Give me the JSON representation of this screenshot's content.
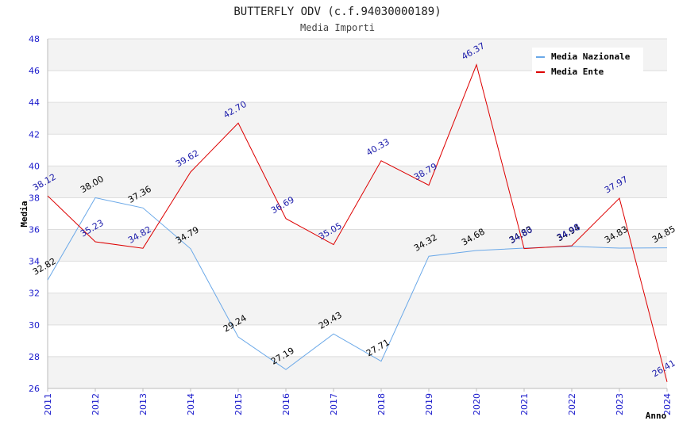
{
  "chart_data": {
    "type": "line",
    "title": "BUTTERFLY ODV (c.f.94030000189)",
    "subtitle": "Media Importi",
    "xlabel": "Anno",
    "ylabel": "Media",
    "ylim": [
      26,
      48
    ],
    "yticks": [
      "26",
      "28",
      "30",
      "32",
      "34",
      "36",
      "38",
      "40",
      "42",
      "44",
      "46",
      "48"
    ],
    "categories": [
      "2011",
      "2012",
      "2013",
      "2014",
      "2015",
      "2016",
      "2017",
      "2018",
      "2019",
      "2020",
      "2021",
      "2022",
      "2023",
      "2024"
    ],
    "series": [
      {
        "name": "Media Nazionale",
        "color": "#6aa8e8",
        "label_color": "#000000",
        "values": [
          32.82,
          38.0,
          37.36,
          34.79,
          29.24,
          27.19,
          29.43,
          27.71,
          34.32,
          34.68,
          34.83,
          34.94,
          34.83,
          34.85
        ],
        "labels": [
          "32.82",
          "38.00",
          "37.36",
          "34.79",
          "29.24",
          "27.19",
          "29.43",
          "27.71",
          "34.32",
          "34.68",
          "34.83",
          "34.94",
          "34.83",
          "34.85"
        ]
      },
      {
        "name": "Media Ente",
        "color": "#dd0000",
        "label_color": "#1a1aaa",
        "values": [
          38.12,
          35.23,
          34.82,
          39.62,
          42.7,
          36.69,
          35.05,
          40.33,
          38.79,
          46.37,
          34.8,
          34.98,
          37.97,
          26.41
        ],
        "labels": [
          "38.12",
          "35.23",
          "34.82",
          "39.62",
          "42.70",
          "36.69",
          "35.05",
          "40.33",
          "38.79",
          "46.37",
          "34.80",
          "34.98",
          "37.97",
          "26.41"
        ]
      }
    ],
    "grid": true,
    "legend": "top-right"
  }
}
